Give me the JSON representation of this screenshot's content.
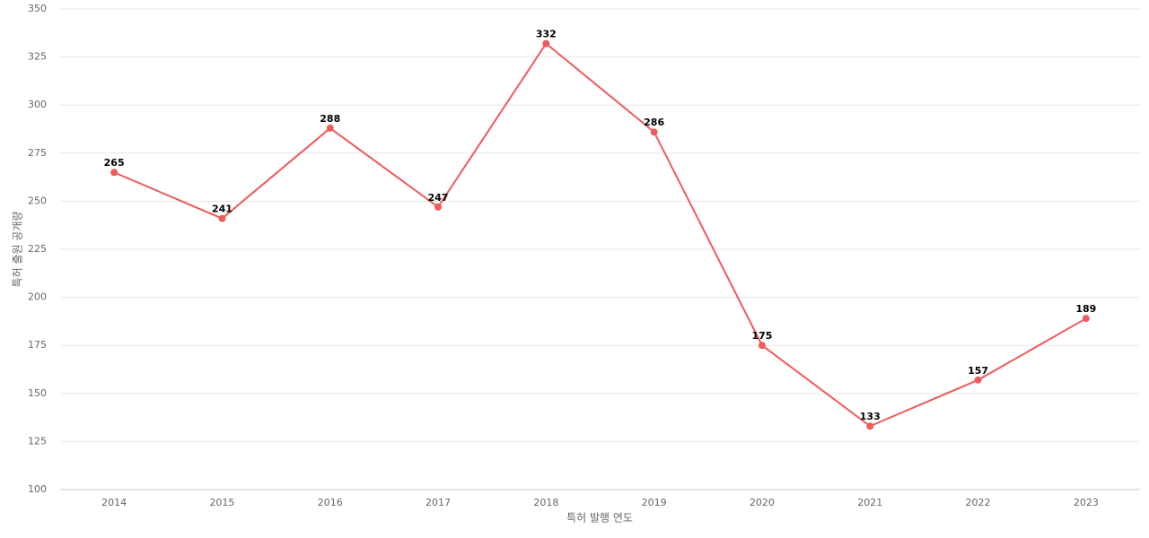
{
  "chart_data": {
    "type": "line",
    "x_label": "특허 발행 연도",
    "y_label": "특허 출원 공개량",
    "categories": [
      "2014",
      "2015",
      "2016",
      "2017",
      "2018",
      "2019",
      "2020",
      "2021",
      "2022",
      "2023"
    ],
    "series": [
      {
        "color": "#ef5a5a",
        "values": [
          265,
          241,
          288,
          247,
          332,
          286,
          175,
          133,
          157,
          189
        ]
      }
    ],
    "ylim": [
      100,
      350
    ],
    "yticks": [
      100,
      125,
      150,
      175,
      200,
      225,
      250,
      275,
      300,
      325,
      350
    ],
    "grid": true
  }
}
